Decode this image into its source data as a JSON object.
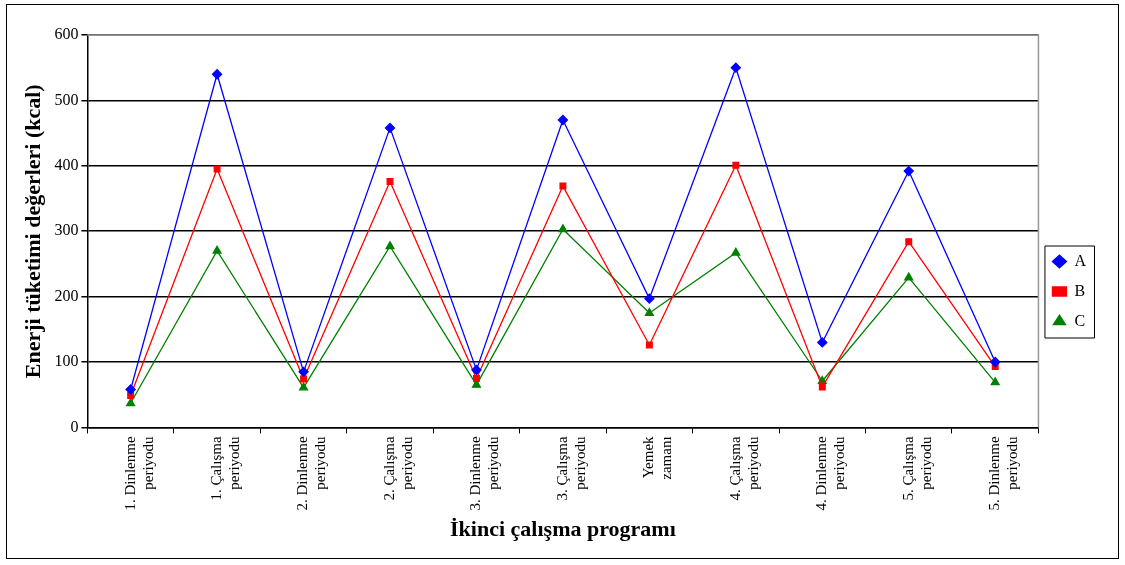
{
  "chart_data": {
    "type": "line",
    "xlabel": "İkinci çalışma programı",
    "ylabel": "Enerji tüketimi değerleri (kcal)",
    "categories": [
      "1. Dinlenme periyodu",
      "1. Çalışma periyodu",
      "2. Dinlenme periyodu",
      "2. Çalışma periyodu",
      "3. Dinlenme periyodu",
      "3. Çalışma periyodu",
      "Yemek zamanı",
      "4. Çalışma periyodu",
      "4. Dinlenme periyodu",
      "5. Çalışma periyodu",
      "5. Dinlenme periyodu"
    ],
    "series": [
      {
        "name": "A",
        "color": "#0000ff",
        "marker": "diamond",
        "values": [
          58,
          540,
          85,
          458,
          88,
          470,
          197,
          550,
          130,
          392,
          100
        ]
      },
      {
        "name": "B",
        "color": "#ff0000",
        "marker": "square",
        "values": [
          49,
          395,
          74,
          376,
          75,
          369,
          126,
          401,
          62,
          284,
          93
        ]
      },
      {
        "name": "C",
        "color": "#008000",
        "marker": "triangle",
        "values": [
          37,
          270,
          61,
          277,
          65,
          303,
          175,
          267,
          71,
          229,
          69
        ]
      }
    ],
    "ylim": [
      0,
      600
    ],
    "yticks": [
      0,
      100,
      200,
      300,
      400,
      500,
      600
    ],
    "grid": "y",
    "legend": "right",
    "line_style": "solid"
  }
}
